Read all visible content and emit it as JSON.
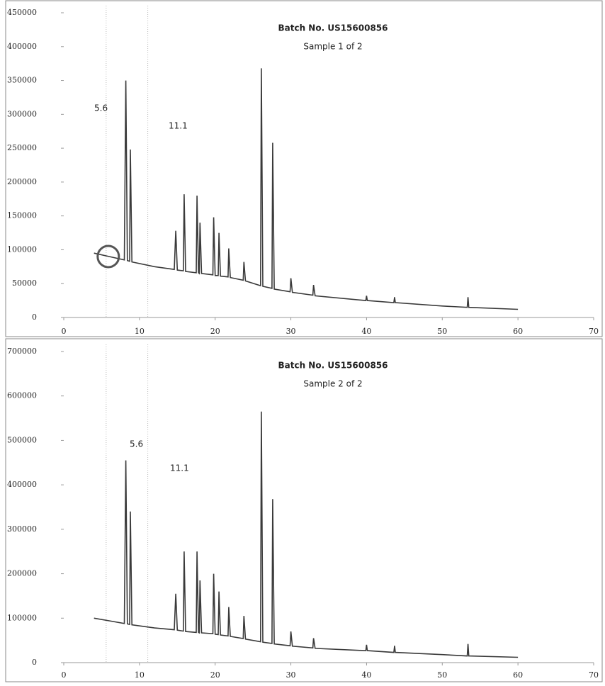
{
  "chart_data": [
    {
      "type": "line",
      "title": "Batch No. US15600856",
      "subtitle": "Sample 1 of 2",
      "xlim": [
        0,
        70
      ],
      "xticks": [
        0,
        10,
        20,
        30,
        40,
        50,
        60,
        70
      ],
      "ylim": [
        0,
        450000
      ],
      "yticks": [
        0,
        50000,
        100000,
        150000,
        200000,
        250000,
        300000,
        350000,
        400000,
        450000
      ],
      "vlines": [
        5.6,
        11.1
      ],
      "grid": false,
      "series": [
        {
          "color": "#3a3a3a",
          "x": [
            4,
            6,
            8,
            8.2,
            8.4,
            8.7,
            8.8,
            9.0,
            12,
            14.6,
            14.8,
            15.0,
            15.8,
            15.9,
            16.1,
            17.5,
            17.6,
            17.8,
            17.9,
            18.0,
            18.2,
            19.7,
            19.8,
            20.0,
            20.4,
            20.5,
            20.7,
            21.7,
            21.8,
            22.0,
            23.7,
            23.8,
            24.0,
            26.0,
            26.1,
            26.3,
            27.5,
            27.6,
            27.8,
            29.9,
            30.0,
            30.2,
            32.9,
            33.0,
            33.2,
            39.9,
            40.0,
            40.1,
            43.6,
            43.7,
            43.8,
            50,
            53.3,
            53.4,
            53.5,
            60
          ],
          "values": [
            95000,
            90000,
            85000,
            350000,
            84000,
            83000,
            248000,
            82000,
            75000,
            71000,
            128000,
            70000,
            69000,
            182000,
            68000,
            66000,
            180000,
            66000,
            65000,
            140000,
            65000,
            63000,
            148000,
            62000,
            62000,
            125000,
            61000,
            60000,
            102000,
            59000,
            55000,
            82000,
            54000,
            47000,
            368000,
            46000,
            43000,
            258000,
            42000,
            38000,
            58000,
            37000,
            33000,
            48000,
            32000,
            25000,
            32000,
            25000,
            22000,
            30000,
            22000,
            17000,
            15000,
            30000,
            15000,
            12000
          ]
        }
      ]
    },
    {
      "type": "line",
      "title": "Batch No. US15600856",
      "subtitle": "Sample 2 of 2",
      "xlim": [
        0,
        70
      ],
      "xticks": [
        0,
        10,
        20,
        30,
        40,
        50,
        60,
        70
      ],
      "ylim": [
        0,
        700000
      ],
      "yticks": [
        0,
        100000,
        200000,
        300000,
        400000,
        500000,
        600000,
        700000
      ],
      "vlines": [
        5.6,
        11.1
      ],
      "grid": false,
      "series": [
        {
          "color": "#3a3a3a",
          "x": [
            4,
            6,
            8,
            8.2,
            8.4,
            8.7,
            8.8,
            9.0,
            12,
            14.6,
            14.8,
            15.0,
            15.8,
            15.9,
            16.1,
            17.5,
            17.6,
            17.8,
            17.9,
            18.0,
            18.2,
            19.7,
            19.8,
            20.0,
            20.4,
            20.5,
            20.7,
            21.7,
            21.8,
            22.0,
            23.7,
            23.8,
            24.0,
            26.0,
            26.1,
            26.3,
            27.5,
            27.6,
            27.8,
            29.9,
            30.0,
            30.2,
            32.9,
            33.0,
            33.2,
            39.9,
            40.0,
            40.1,
            43.6,
            43.7,
            43.8,
            50,
            53.3,
            53.4,
            53.5,
            60
          ],
          "values": [
            100000,
            94000,
            88000,
            455000,
            87000,
            86000,
            340000,
            85000,
            78000,
            74000,
            155000,
            73000,
            71000,
            250000,
            70000,
            68000,
            250000,
            68000,
            67000,
            185000,
            67000,
            65000,
            200000,
            64000,
            63000,
            160000,
            62000,
            60000,
            125000,
            59000,
            54000,
            105000,
            53000,
            47000,
            565000,
            46000,
            43000,
            368000,
            42000,
            38000,
            70000,
            37000,
            33000,
            55000,
            32000,
            27000,
            40000,
            27000,
            23000,
            38000,
            23000,
            18000,
            15000,
            42000,
            15000,
            12000
          ]
        }
      ]
    }
  ]
}
